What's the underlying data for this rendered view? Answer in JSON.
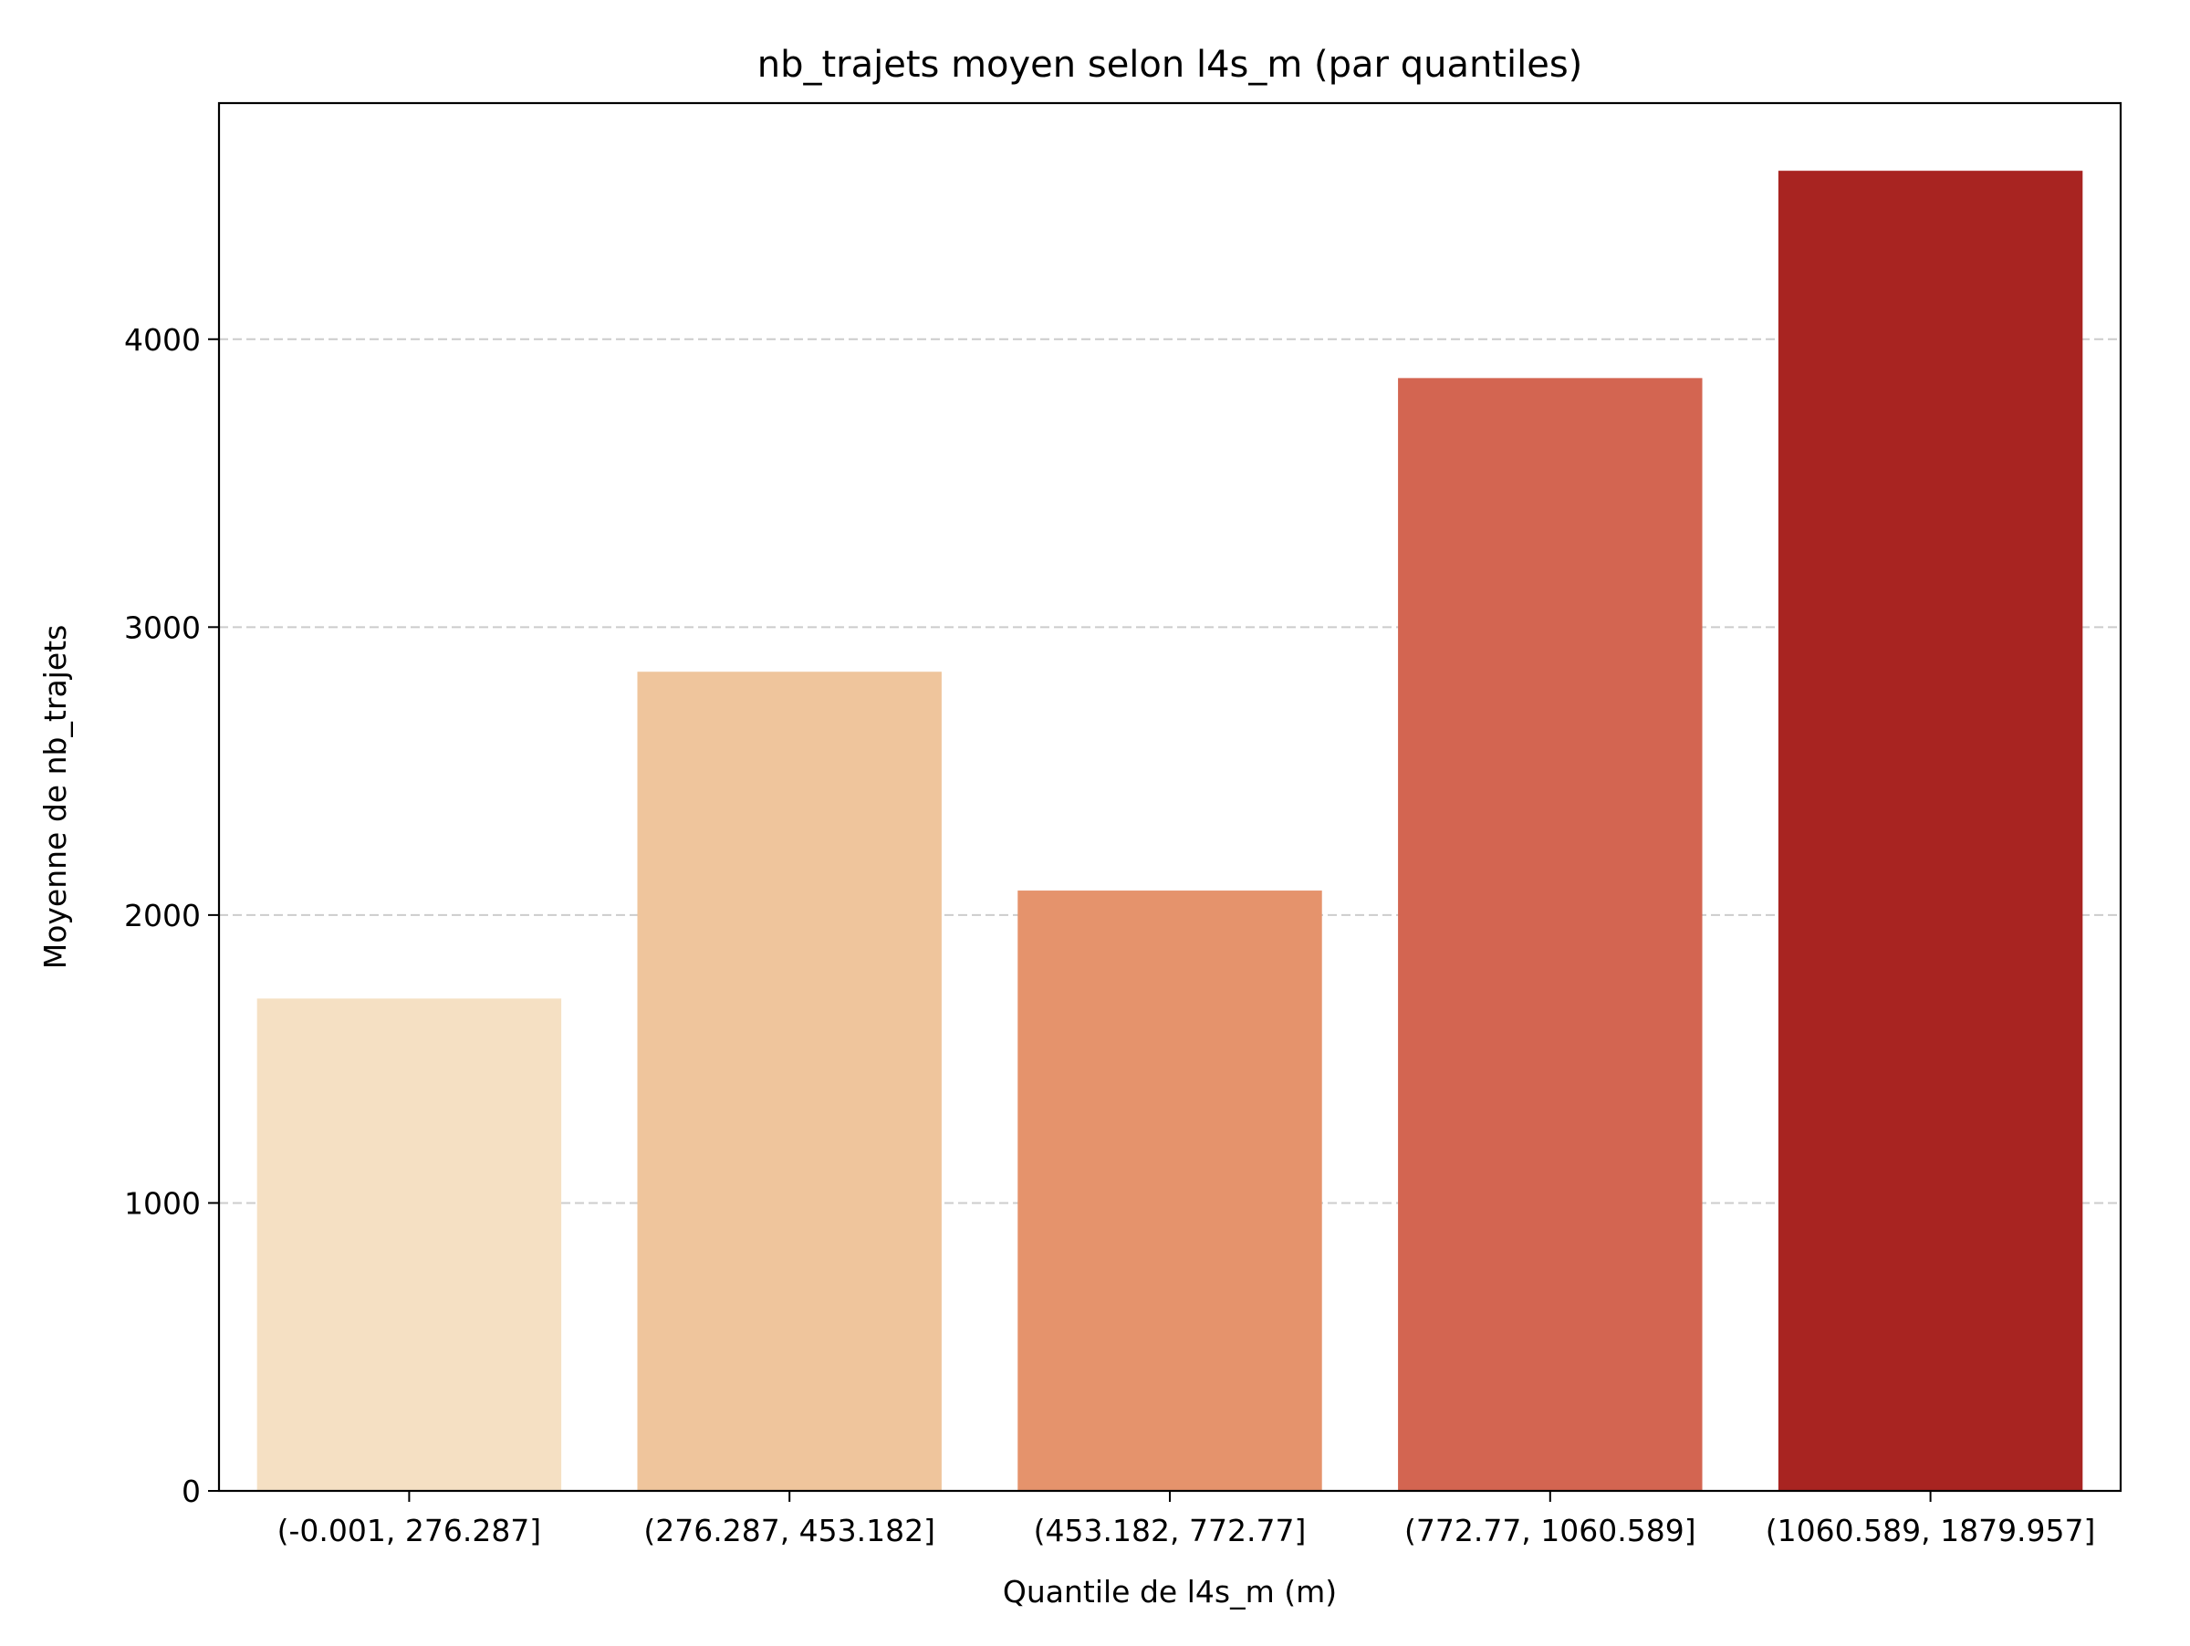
{
  "chart_data": {
    "type": "bar",
    "title": "nb_trajets moyen selon l4s_m (par quantiles)",
    "xlabel": "Quantile de l4s_m (m)",
    "ylabel": "Moyenne de nb_trajets",
    "categories": [
      "(-0.001, 276.287]",
      "(276.287, 453.182]",
      "(453.182, 772.77]",
      "(772.77, 1060.589]",
      "(1060.589, 1879.957]"
    ],
    "values": [
      1710,
      2845,
      2085,
      3865,
      4585
    ],
    "bar_colors": [
      "#f5e0c3",
      "#efc59c",
      "#e5936c",
      "#d36551",
      "#a82421"
    ],
    "ylim": [
      0,
      4820
    ],
    "yticks": [
      0,
      1000,
      2000,
      3000,
      4000
    ],
    "grid": "y-dashed"
  }
}
